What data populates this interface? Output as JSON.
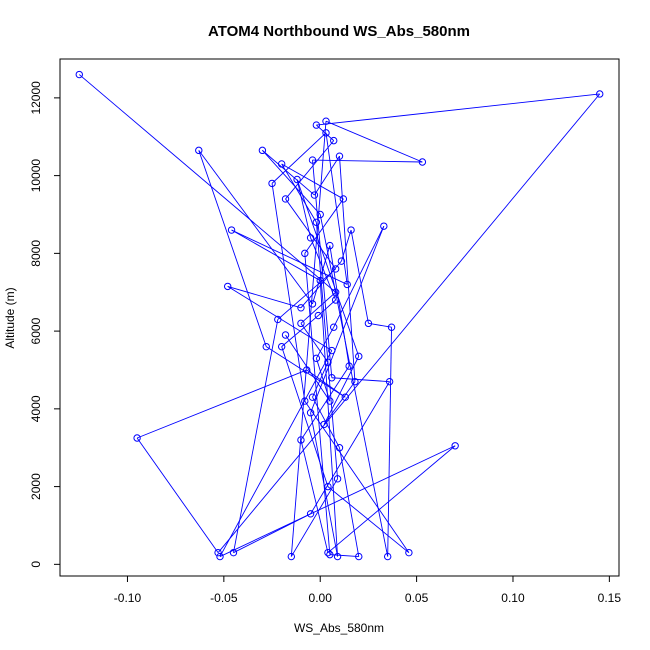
{
  "chart_data": {
    "type": "line",
    "title": "ATOM4 Northbound WS_Abs_580nm",
    "xlabel": "WS_Abs_580nm",
    "ylabel": "Altitude (m)",
    "xlim": [
      -0.135,
      0.155
    ],
    "ylim": [
      -300,
      13000
    ],
    "x_ticks": [
      -0.1,
      -0.05,
      0.0,
      0.05,
      0.1,
      0.15
    ],
    "x_tick_labels": [
      "-0.10",
      "-0.05",
      "0.00",
      "0.05",
      "0.10",
      "0.15"
    ],
    "y_ticks": [
      0,
      2000,
      4000,
      6000,
      8000,
      10000,
      12000
    ],
    "y_tick_labels": [
      "0",
      "2000",
      "4000",
      "6000",
      "8000",
      "10000",
      "12000"
    ],
    "grid": false,
    "legend": "none",
    "series": [
      {
        "color": "#0000ff",
        "marker": "open-circle",
        "points": [
          [
            -0.125,
            12600
          ],
          [
            0.008,
            7000
          ],
          [
            -0.01,
            6200
          ],
          [
            0.004,
            5200
          ],
          [
            -0.004,
            4300
          ],
          [
            0.01,
            3000
          ],
          [
            0.02,
            200
          ],
          [
            0.005,
            250
          ],
          [
            -0.008,
            8000
          ],
          [
            0.012,
            9400
          ],
          [
            -0.02,
            10300
          ],
          [
            -0.002,
            8800
          ],
          [
            0.009,
            2200
          ],
          [
            -0.015,
            200
          ],
          [
            0.003,
            11400
          ],
          [
            0.053,
            10350
          ],
          [
            -0.004,
            10400
          ],
          [
            0.006,
            4800
          ],
          [
            0.036,
            4700
          ],
          [
            -0.005,
            1300
          ],
          [
            -0.045,
            300
          ],
          [
            -0.022,
            6300
          ],
          [
            0.008,
            7600
          ],
          [
            -0.018,
            9400
          ],
          [
            0.007,
            10900
          ],
          [
            -0.002,
            11300
          ],
          [
            0.145,
            12100
          ],
          [
            -0.053,
            300
          ],
          [
            -0.095,
            3250
          ],
          [
            -0.007,
            5000
          ],
          [
            0.013,
            4300
          ],
          [
            -0.028,
            5600
          ],
          [
            -0.063,
            10650
          ],
          [
            -0.004,
            6700
          ],
          [
            0.005,
            8200
          ],
          [
            0.015,
            5100
          ],
          [
            -0.01,
            3200
          ],
          [
            0.004,
            300
          ],
          [
            0.07,
            3050
          ],
          [
            -0.052,
            200
          ],
          [
            0.006,
            5500
          ],
          [
            -0.048,
            7150
          ],
          [
            -0.01,
            6600
          ],
          [
            0.011,
            7800
          ],
          [
            0.016,
            8600
          ],
          [
            0.025,
            6200
          ],
          [
            0.037,
            6100
          ],
          [
            0.035,
            200
          ],
          [
            0.0,
            9000
          ],
          [
            -0.03,
            10650
          ],
          [
            -0.003,
            9500
          ],
          [
            0.01,
            10500
          ],
          [
            0.018,
            4700
          ],
          [
            0.002,
            3600
          ],
          [
            0.02,
            5350
          ],
          [
            -0.012,
            9900
          ],
          [
            -0.005,
            8400
          ],
          [
            0.008,
            6800
          ],
          [
            -0.001,
            6400
          ],
          [
            -0.02,
            5600
          ],
          [
            0.004,
            2000
          ],
          [
            0.046,
            300
          ],
          [
            -0.008,
            4200
          ],
          [
            -0.025,
            9800
          ],
          [
            0.003,
            11100
          ],
          [
            0.014,
            7200
          ],
          [
            -0.046,
            8600
          ],
          [
            0.0,
            7300
          ],
          [
            0.009,
            200
          ],
          [
            -0.005,
            3900
          ],
          [
            0.033,
            8700
          ],
          [
            0.007,
            6100
          ],
          [
            -0.002,
            5300
          ],
          [
            0.005,
            4200
          ],
          [
            -0.018,
            5900
          ]
        ]
      }
    ]
  }
}
